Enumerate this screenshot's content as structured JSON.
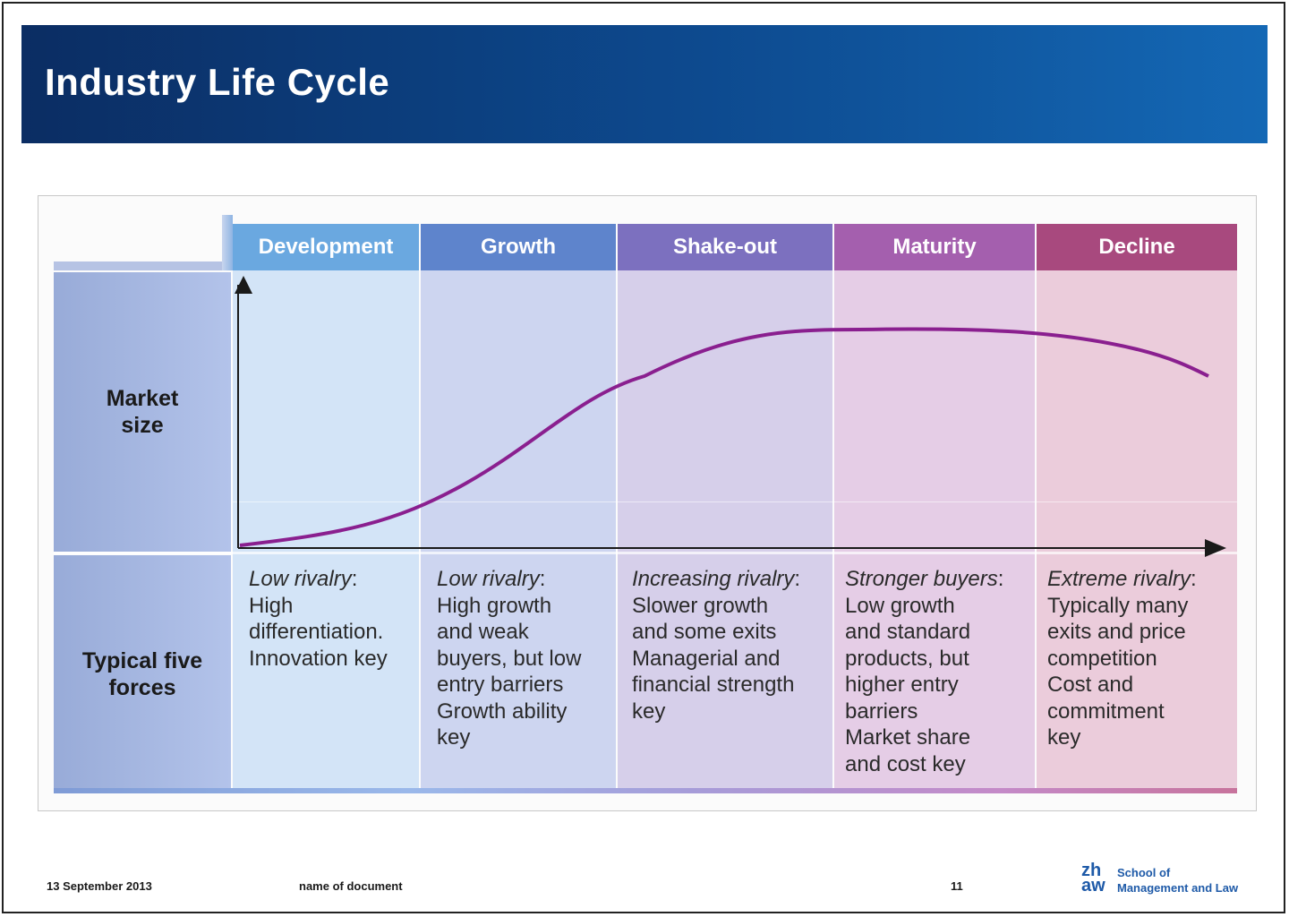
{
  "slide": {
    "title": "Industry Life Cycle"
  },
  "diagram": {
    "row_labels": {
      "market_size": "Market size",
      "five_forces": "Typical five forces"
    },
    "stages": [
      {
        "name": "Development",
        "color": "#6aa8e0",
        "bg": "#d3e4f7",
        "rivalry": "Low rivalry",
        "desc": [
          "High",
          "differentiation.",
          "Innovation key"
        ]
      },
      {
        "name": "Growth",
        "color": "#5e84cc",
        "bg": "#cdd5f0",
        "rivalry": "Low rivalry",
        "desc": [
          "High growth",
          "and weak",
          "buyers, but low",
          "entry barriers",
          "Growth ability",
          "key"
        ]
      },
      {
        "name": "Shake-out",
        "color": "#7c70bf",
        "bg": "#d6cfea",
        "rivalry": "Increasing rivalry",
        "desc": [
          "Slower growth",
          "and some exits",
          "Managerial and",
          "financial strength",
          "key"
        ]
      },
      {
        "name": "Maturity",
        "color": "#a45fae",
        "bg": "#e5cde6",
        "rivalry": "Stronger buyers",
        "desc": [
          "Low growth",
          "and standard",
          "products, but",
          "higher entry",
          "barriers",
          "Market share",
          "and cost key"
        ]
      },
      {
        "name": "Decline",
        "color": "#a8497e",
        "bg": "#ebccdb",
        "rivalry": "Extreme rivalry",
        "desc": [
          "Typically many",
          "exits and price",
          "competition",
          "Cost and",
          "commitment",
          "key"
        ]
      }
    ],
    "curve_color": "#8a1f8f"
  },
  "footer": {
    "date": "13 September 2013",
    "document": "name of document",
    "page": "11",
    "logo_mark_top": "zh",
    "logo_mark_bottom": "aw",
    "logo_line1": "School of",
    "logo_line2": "Management and Law"
  }
}
